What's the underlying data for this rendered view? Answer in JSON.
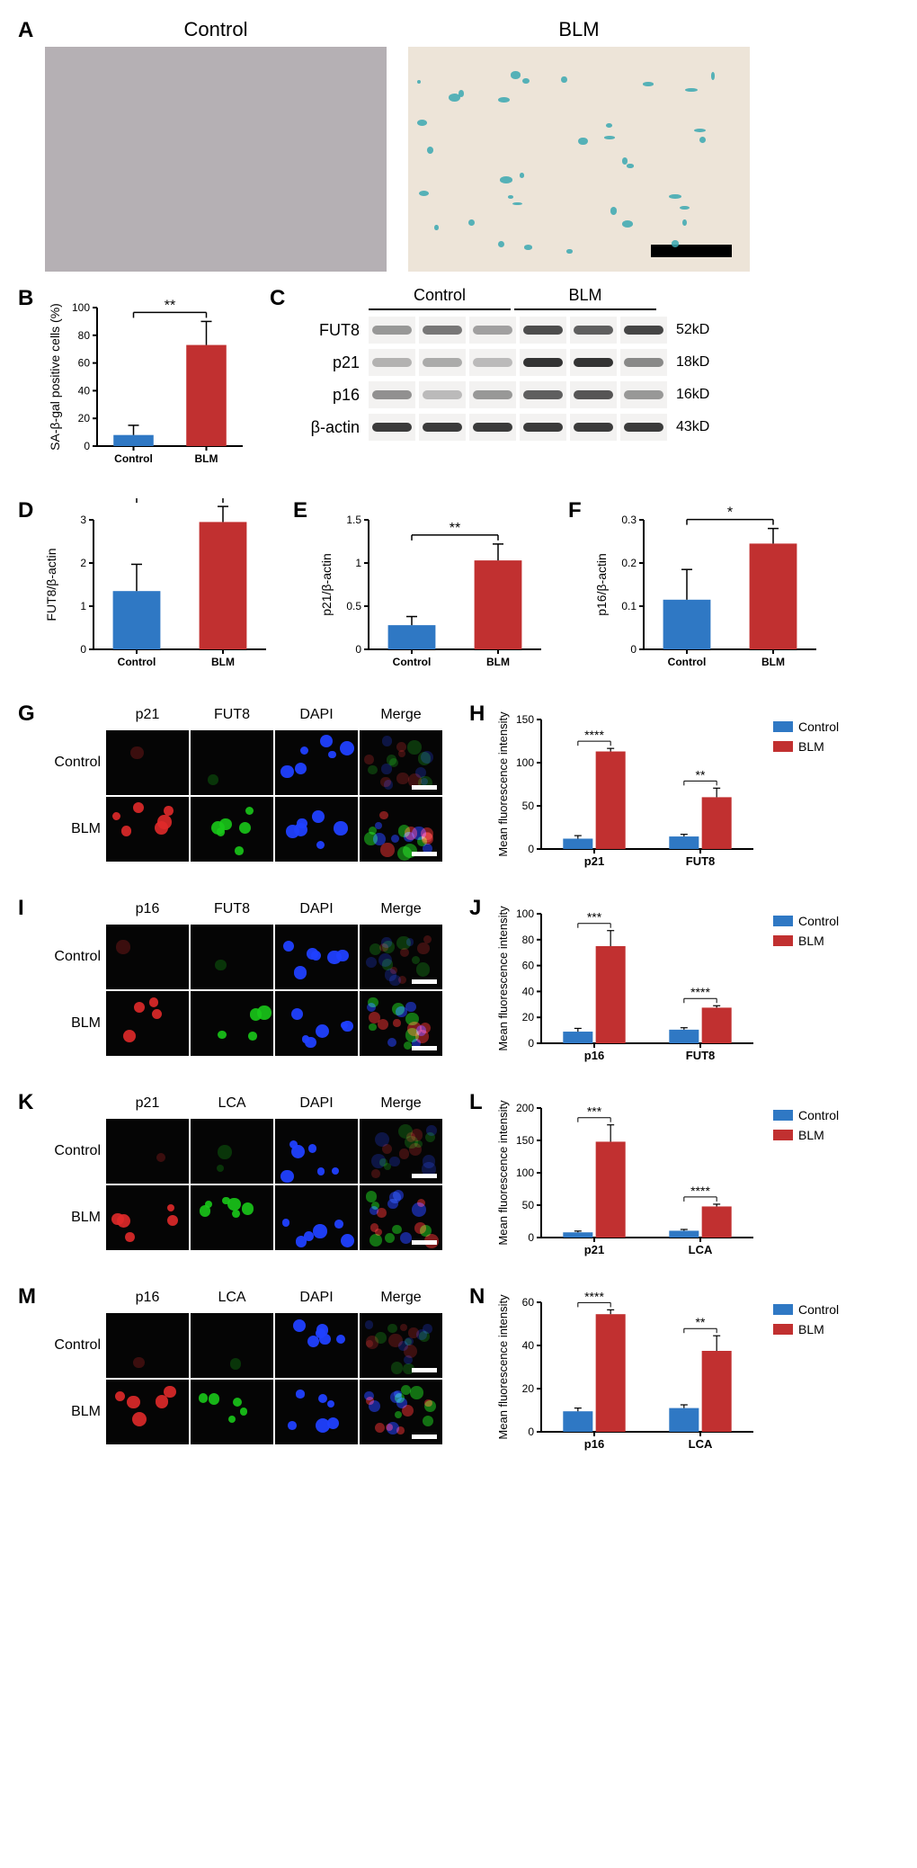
{
  "panelA": {
    "label": "A",
    "titles": [
      "Control",
      "BLM"
    ],
    "micrograph_w": 380,
    "micrograph_h": 250,
    "control_bg": "#b5b0b4",
    "blm_bg": "#ede4d8",
    "scalebar_w": 90,
    "scalebar_h": 14,
    "scalebar_color": "#000000",
    "blm_spots_color": "#3aa8b1"
  },
  "panelB": {
    "label": "B",
    "type": "bar",
    "categories": [
      "Control",
      "BLM"
    ],
    "values": [
      8,
      73
    ],
    "errors": [
      7,
      17
    ],
    "colors": [
      "#2f78c4",
      "#c13030"
    ],
    "ylabel": "SA-β-gal positive cells (%)",
    "ylim": [
      0,
      100
    ],
    "ytick_step": 20,
    "sig": "**",
    "axis_color": "#000000",
    "bar_width": 0.55,
    "label_fontsize": 13,
    "tick_fontsize": 12
  },
  "panelC": {
    "label": "C",
    "group_labels": [
      "Control",
      "BLM"
    ],
    "rows": [
      {
        "name": "FUT8",
        "kd": "52kD",
        "bands": [
          0.35,
          0.55,
          0.3,
          0.8,
          0.7,
          0.85
        ]
      },
      {
        "name": "p21",
        "kd": "18kD",
        "bands": [
          0.2,
          0.25,
          0.15,
          0.95,
          0.95,
          0.45
        ]
      },
      {
        "name": "p16",
        "kd": "16kD",
        "bands": [
          0.4,
          0.15,
          0.35,
          0.7,
          0.75,
          0.35
        ]
      },
      {
        "name": "β-actin",
        "kd": "43kD",
        "bands": [
          0.9,
          0.9,
          0.9,
          0.9,
          0.9,
          0.9
        ]
      }
    ],
    "lane_w": 52,
    "lane_h": 30,
    "bg": "#f3f2f1",
    "band_color": "#2b2b2b"
  },
  "panelsDEF": [
    {
      "label": "D",
      "ylabel": "FUT8/β-actin",
      "values": [
        1.35,
        2.95
      ],
      "errors": [
        0.62,
        0.36
      ],
      "ylim": [
        0,
        3
      ],
      "ytick_step": 1,
      "sig": "*"
    },
    {
      "label": "E",
      "ylabel": "p21/β-actin",
      "values": [
        0.28,
        1.03
      ],
      "errors": [
        0.1,
        0.19
      ],
      "ylim": [
        0,
        1.5
      ],
      "ytick_step": 0.5,
      "sig": "**"
    },
    {
      "label": "F",
      "ylabel": "p16/β-actin",
      "values": [
        0.115,
        0.245
      ],
      "errors": [
        0.07,
        0.035
      ],
      "ylim": [
        0,
        0.3
      ],
      "ytick_step": 0.1,
      "sig": "*"
    }
  ],
  "barCommon": {
    "categories": [
      "Control",
      "BLM"
    ],
    "colors": [
      "#2f78c4",
      "#c13030"
    ],
    "axis_color": "#000000",
    "bar_width": 0.55,
    "label_fontsize": 14,
    "tick_fontsize": 12
  },
  "ifPanels": [
    {
      "imgLabel": "G",
      "chartLabel": "H",
      "headers": [
        "p21",
        "FUT8",
        "DAPI",
        "Merge"
      ],
      "chart": {
        "groups": [
          "p21",
          "FUT8"
        ],
        "control": [
          12,
          14.5
        ],
        "blm": [
          113,
          60
        ],
        "err_c": [
          3.5,
          2.5
        ],
        "err_b": [
          3.5,
          10.5
        ],
        "sigs": [
          "****",
          "**"
        ],
        "ylim": [
          0,
          150
        ],
        "ytick_step": 50,
        "ylabel": "Mean fluorescence intensity"
      },
      "redCount": {
        "control": 1,
        "blm": 6
      },
      "greenCount": {
        "control": 1,
        "blm": 6
      }
    },
    {
      "imgLabel": "I",
      "chartLabel": "J",
      "headers": [
        "p16",
        "FUT8",
        "DAPI",
        "Merge"
      ],
      "chart": {
        "groups": [
          "p16",
          "FUT8"
        ],
        "control": [
          9,
          10.5
        ],
        "blm": [
          75,
          27.5
        ],
        "err_c": [
          2.5,
          1.5
        ],
        "err_b": [
          12,
          1.5
        ],
        "sigs": [
          "***",
          "****"
        ],
        "ylim": [
          0,
          100
        ],
        "ytick_step": 20,
        "ylabel": "Mean fluorescence intensity"
      },
      "redCount": {
        "control": 1,
        "blm": 4
      },
      "greenCount": {
        "control": 1,
        "blm": 4
      }
    },
    {
      "imgLabel": "K",
      "chartLabel": "L",
      "headers": [
        "p21",
        "LCA",
        "DAPI",
        "Merge"
      ],
      "chart": {
        "groups": [
          "p21",
          "LCA"
        ],
        "control": [
          8,
          10.5
        ],
        "blm": [
          148,
          48
        ],
        "err_c": [
          2,
          2
        ],
        "err_b": [
          26,
          3.5
        ],
        "sigs": [
          "***",
          "****"
        ],
        "ylim": [
          0,
          200
        ],
        "ytick_step": 50,
        "ylabel": "Mean fluorescence intensity"
      },
      "redCount": {
        "control": 1,
        "blm": 5
      },
      "greenCount": {
        "control": 2,
        "blm": 6
      }
    },
    {
      "imgLabel": "M",
      "chartLabel": "N",
      "headers": [
        "p16",
        "LCA",
        "DAPI",
        "Merge"
      ],
      "chart": {
        "groups": [
          "p16",
          "LCA"
        ],
        "control": [
          9.5,
          11
        ],
        "blm": [
          54.5,
          37.5
        ],
        "err_c": [
          1.5,
          1.5
        ],
        "err_b": [
          2,
          7
        ],
        "sigs": [
          "****",
          "**"
        ],
        "ylim": [
          0,
          60
        ],
        "ytick_step": 20,
        "ylabel": "Mean fluorescence intensity"
      },
      "redCount": {
        "control": 1,
        "blm": 5
      },
      "greenCount": {
        "control": 1,
        "blm": 5
      }
    }
  ],
  "ifCommon": {
    "rowLabels": [
      "Control",
      "BLM"
    ],
    "cell_bg": "#050505",
    "red": "#e02a2a",
    "green": "#19c819",
    "blue": "#2040ff",
    "scalebar": "#ffffff",
    "legend": {
      "control": {
        "label": "Control",
        "color": "#2f78c4"
      },
      "blm": {
        "label": "BLM",
        "color": "#c13030"
      }
    }
  }
}
